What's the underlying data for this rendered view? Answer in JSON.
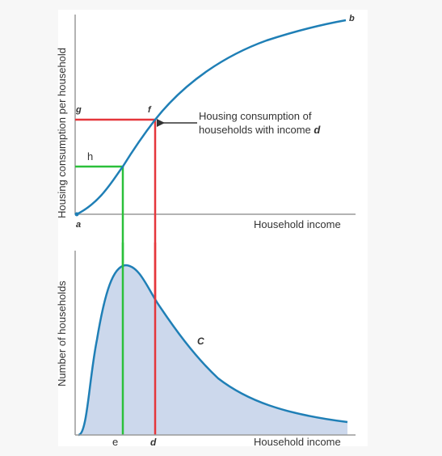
{
  "top_graph": {
    "ylabel": "Housing consumption per household",
    "xlabel": "Household income",
    "point_a": "a",
    "point_b": "b",
    "point_f": "f",
    "point_g": "g",
    "point_h": "h",
    "annotation_line1": "Housing consumption of",
    "annotation_line2_prefix": "households with income ",
    "annotation_line2_var": "d"
  },
  "bottom_graph": {
    "ylabel": "Number of households",
    "xlabel": "Household income",
    "point_e": "e",
    "point_d": "d",
    "curve_label": "C"
  },
  "colors": {
    "curve": "#1f7fb6",
    "fill": "#ccd8ec",
    "red": "#e5363b",
    "green": "#2bc03a",
    "axis": "#9a9a9a",
    "arrow": "#333333"
  }
}
